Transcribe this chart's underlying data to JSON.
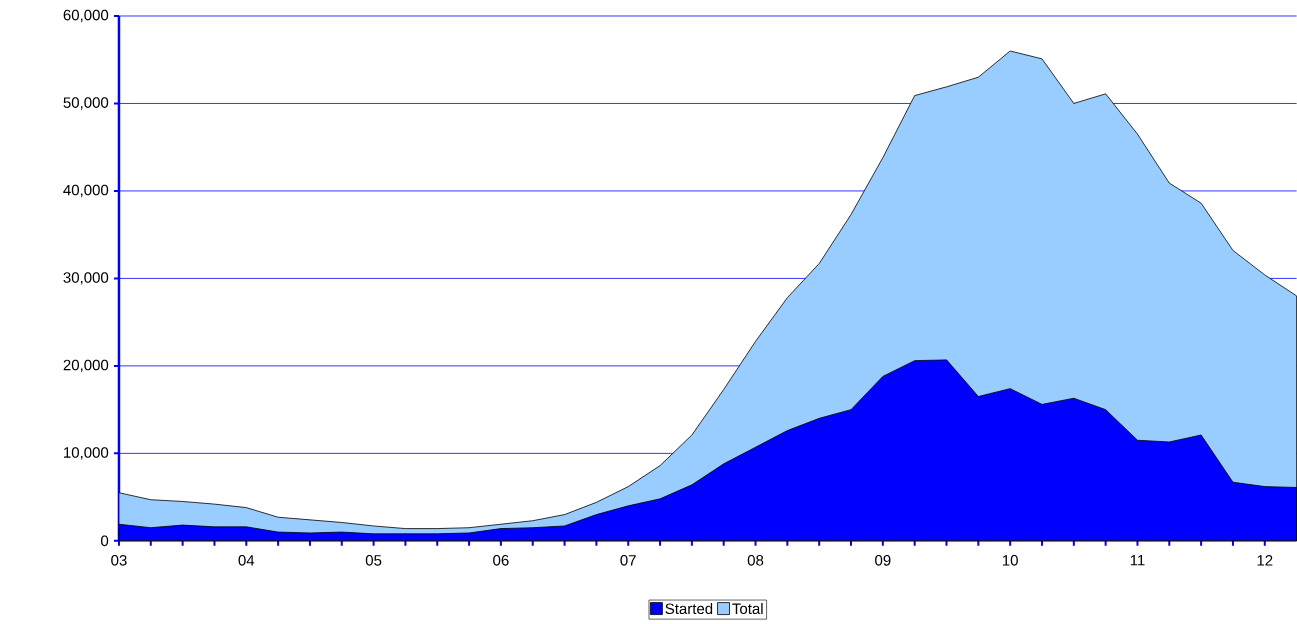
{
  "chart_data": {
    "type": "area",
    "x": [
      2003,
      2003.25,
      2003.5,
      2003.75,
      2004,
      2004.25,
      2004.5,
      2004.75,
      2005,
      2005.25,
      2005.5,
      2005.75,
      2006,
      2006.25,
      2006.5,
      2006.75,
      2007,
      2007.25,
      2007.5,
      2007.75,
      2008,
      2008.25,
      2008.5,
      2008.75,
      2009,
      2009.25,
      2009.5,
      2009.75,
      2010,
      2010.25,
      2010.5,
      2010.75,
      2011,
      2011.25,
      2011.5,
      2011.75,
      2012,
      2012.25
    ],
    "series": [
      {
        "name": "Started",
        "color": "#0000ff",
        "values": [
          1900,
          1500,
          1800,
          1600,
          1600,
          1000,
          900,
          1000,
          800,
          800,
          800,
          900,
          1400,
          1500,
          1700,
          3000,
          4000,
          4800,
          6400,
          8800,
          10700,
          12600,
          14000,
          15000,
          18800,
          20600,
          20700,
          16500,
          17400,
          15600,
          16300,
          15000,
          11500,
          11300,
          12100,
          6700,
          6200,
          6100
        ]
      },
      {
        "name": "Total",
        "color": "#99ccff",
        "values": [
          5500,
          4700,
          4500,
          4200,
          3800,
          2700,
          2400,
          2100,
          1700,
          1400,
          1400,
          1500,
          1900,
          2300,
          3000,
          4400,
          6200,
          8600,
          12100,
          17300,
          22800,
          27800,
          31700,
          37300,
          43800,
          50900,
          51900,
          53000,
          56000,
          55100,
          50000,
          51100,
          46500,
          40900,
          38600,
          33200,
          30400,
          28000
        ]
      }
    ],
    "xlim": [
      2003,
      2012.25
    ],
    "xticks": [
      {
        "value": 2003,
        "label": "03"
      },
      {
        "value": 2004,
        "label": "04"
      },
      {
        "value": 2005,
        "label": "05"
      },
      {
        "value": 2006,
        "label": "06"
      },
      {
        "value": 2007,
        "label": "07"
      },
      {
        "value": 2008,
        "label": "08"
      },
      {
        "value": 2009,
        "label": "09"
      },
      {
        "value": 2010,
        "label": "10"
      },
      {
        "value": 2011,
        "label": "11"
      },
      {
        "value": 2012,
        "label": "12"
      }
    ],
    "ylim": [
      0,
      60000
    ],
    "yticks": [
      {
        "value": 0,
        "label": "0"
      },
      {
        "value": 10000,
        "label": "10,000"
      },
      {
        "value": 20000,
        "label": "20,000"
      },
      {
        "value": 30000,
        "label": "30,000"
      },
      {
        "value": 40000,
        "label": "40,000"
      },
      {
        "value": 50000,
        "label": "50,000"
      },
      {
        "value": 60000,
        "label": "60,000"
      }
    ],
    "grid": "y",
    "legend": "bottom"
  }
}
